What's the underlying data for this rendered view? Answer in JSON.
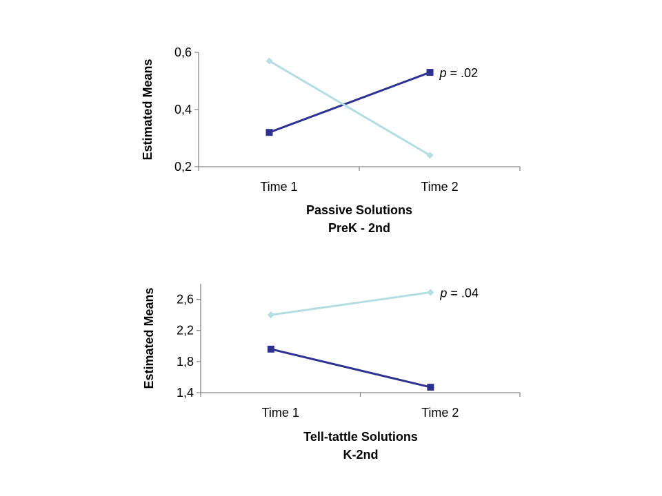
{
  "colors": {
    "dark_series": "#2e3192",
    "light_series": "#b4dde0",
    "axis": "#808080"
  },
  "chart_data": [
    {
      "type": "line",
      "title_lines": [
        "Passive Solutions",
        "PreK - 2nd"
      ],
      "ylabel": "Estimated Means",
      "xlabel": "",
      "categories": [
        "Time 1",
        "Time 2"
      ],
      "ylim": [
        0.2,
        0.6
      ],
      "yticks": [
        0.2,
        0.4,
        0.6
      ],
      "ytick_labels": [
        "0,2",
        "0,4",
        "0,6"
      ],
      "grid": false,
      "series": [
        {
          "color_key": "dark_series",
          "marker": "square",
          "values": [
            0.32,
            0.53
          ]
        },
        {
          "color_key": "light_series",
          "marker": "diamond",
          "values": [
            0.57,
            0.24
          ]
        }
      ],
      "annotation": {
        "prefix": "p",
        "text": " = .02",
        "anchor_series": 0,
        "anchor_index": 1
      }
    },
    {
      "type": "line",
      "title_lines": [
        "Tell-tattle Solutions",
        "K-2nd"
      ],
      "ylabel": "Estimated Means",
      "xlabel": "",
      "categories": [
        "Time 1",
        "Time 2"
      ],
      "ylim": [
        1.4,
        2.8
      ],
      "yticks": [
        1.4,
        1.8,
        2.2,
        2.6
      ],
      "ytick_labels": [
        "1,4",
        "1,8",
        "2,2",
        "2,6"
      ],
      "grid": false,
      "series": [
        {
          "color_key": "dark_series",
          "marker": "square",
          "values": [
            1.96,
            1.47
          ]
        },
        {
          "color_key": "light_series",
          "marker": "diamond",
          "values": [
            2.4,
            2.69
          ]
        }
      ],
      "annotation": {
        "prefix": "p",
        "text": " = .04",
        "anchor_series": 1,
        "anchor_index": 1
      }
    }
  ]
}
